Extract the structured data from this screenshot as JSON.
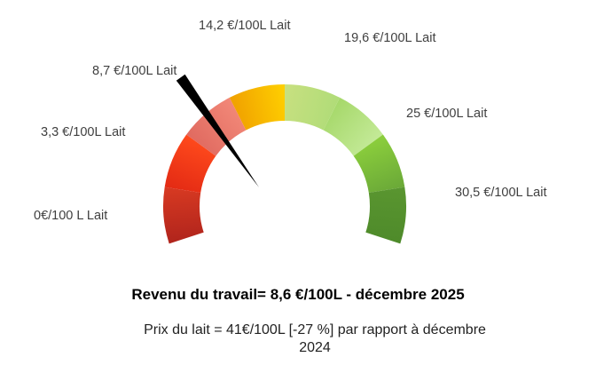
{
  "chart_data": {
    "type": "gauge",
    "title": "Revenu du travail= 8,6 €/100L - décembre 2025",
    "subtitle": "Prix du lait = 41€/100L [-27 %] par rapport à décembre 2024",
    "value": 8.6,
    "range": [
      0,
      30.5
    ],
    "ticks": [
      {
        "value": 0,
        "label": "0€/100 L Lait"
      },
      {
        "value": 3.3,
        "label": "3,3 €/100L Lait"
      },
      {
        "value": 8.7,
        "label": "8,7 €/100L Lait"
      },
      {
        "value": 14.2,
        "label": "14,2 €/100L Lait"
      },
      {
        "value": 19.6,
        "label": "19,6 €/100L Lait"
      },
      {
        "value": 25,
        "label": "25 €/100L Lait"
      },
      {
        "value": 30.5,
        "label": "30,5 €/100L Lait"
      }
    ],
    "band_colors": [
      [
        "#b0241c",
        "#d83a22"
      ],
      [
        "#e32a14",
        "#ff4a1c"
      ],
      [
        "#e06a60",
        "#f28878"
      ],
      [
        "#f0a000",
        "#ffd000"
      ],
      [
        "#c8e080",
        "#b0dc78"
      ],
      [
        "#a6d86a",
        "#c4ea98"
      ],
      [
        "#8ccf3c",
        "#6aa838"
      ],
      [
        "#5a9630",
        "#4e8a2a"
      ]
    ],
    "needle_color": "#000000"
  }
}
